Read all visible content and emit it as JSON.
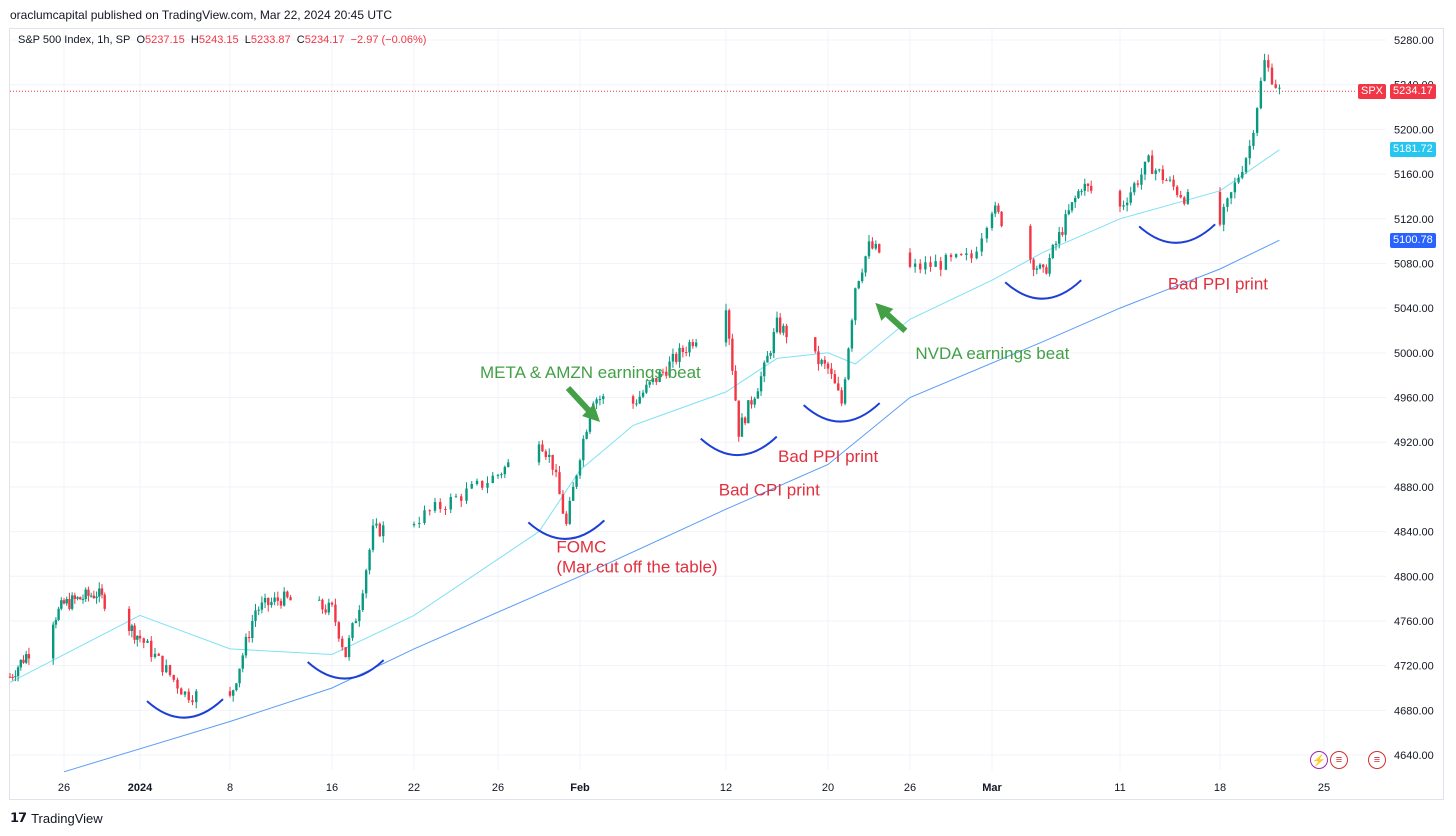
{
  "header": {
    "attribution": "oraclumcapital published on TradingView.com, Mar 22, 2024 20:45 UTC"
  },
  "legend": {
    "symbol": "S&P 500 Index, 1h, SP",
    "open_label": "O",
    "open": "5237.15",
    "high_label": "H",
    "high": "5243.15",
    "low_label": "L",
    "low": "5233.87",
    "close_label": "C",
    "close": "5234.17",
    "change": "−2.97 (−0.06%)"
  },
  "price_tags": {
    "spx_label": "SPX",
    "spx_value": "5234.17",
    "ma_fast_value": "5181.72",
    "ma_slow_value": "5100.78"
  },
  "footer": {
    "brand": "TradingView"
  },
  "colors": {
    "up": "#089981",
    "down": "#f23645",
    "ma_fast": "#7fe1f5",
    "ma_slow": "#5b9cf6",
    "annotation_red": "#e0303e",
    "annotation_green": "#43a047",
    "arc": "#1c3fd6"
  },
  "chart_data": {
    "type": "candlestick",
    "ylim": [
      4620,
      5290
    ],
    "y_ticks": [
      4640,
      4680,
      4720,
      4760,
      4800,
      4840,
      4880,
      4920,
      4960,
      5000,
      5040,
      5080,
      5120,
      5160,
      5200,
      5240,
      5280
    ],
    "y_tick_labels": [
      "4640.00",
      "4680.00",
      "4720.00",
      "4760.00",
      "4800.00",
      "4840.00",
      "4880.00",
      "4920.00",
      "4960.00",
      "5000.00",
      "5040.00",
      "5080.00",
      "5120.00",
      "5160.00",
      "5200.00",
      "5240.00",
      "5280.00"
    ],
    "x_ticks": [
      "26",
      "2024",
      "8",
      "16",
      "22",
      "26",
      "Feb",
      "12",
      "20",
      "26",
      "Mar",
      "11",
      "18",
      "25"
    ],
    "x_dates": [
      "2023-12-26",
      "2024-01-02",
      "2024-01-08",
      "2024-01-16",
      "2024-01-22",
      "2024-01-26",
      "2024-02-01",
      "2024-02-12",
      "2024-02-20",
      "2024-02-26",
      "2024-03-01",
      "2024-03-11",
      "2024-03-18",
      "2024-03-25"
    ],
    "last_price": 5234.17,
    "path_dates": [
      "2023-12-21",
      "2023-12-26",
      "2023-12-29",
      "2024-01-02",
      "2024-01-05",
      "2024-01-08",
      "2024-01-10",
      "2024-01-12",
      "2024-01-16",
      "2024-01-17",
      "2024-01-18",
      "2024-01-19",
      "2024-01-22",
      "2024-01-25",
      "2024-01-29",
      "2024-01-30",
      "2024-01-31",
      "2024-02-01",
      "2024-02-02",
      "2024-02-05",
      "2024-02-09",
      "2024-02-12",
      "2024-02-13",
      "2024-02-15",
      "2024-02-16",
      "2024-02-20",
      "2024-02-21",
      "2024-02-22",
      "2024-02-23",
      "2024-02-26",
      "2024-02-29",
      "2024-03-01",
      "2024-03-05",
      "2024-03-07",
      "2024-03-08",
      "2024-03-11",
      "2024-03-13",
      "2024-03-15",
      "2024-03-18",
      "2024-03-19",
      "2024-03-20",
      "2024-03-21",
      "2024-03-22"
    ],
    "path_close": [
      4710,
      4775,
      4785,
      4745,
      4695,
      4690,
      4770,
      4780,
      4770,
      4730,
      4775,
      4840,
      4850,
      4880,
      4925,
      4900,
      4845,
      4910,
      4960,
      4955,
      5005,
      5045,
      4930,
      4985,
      5025,
      4985,
      4955,
      5060,
      5095,
      5075,
      5085,
      5130,
      5070,
      5125,
      5150,
      5130,
      5170,
      5145,
      5115,
      5150,
      5185,
      5260,
      5234
    ],
    "ma_fast": {
      "dates": [
        "2023-12-21",
        "2024-01-02",
        "2024-01-08",
        "2024-01-16",
        "2024-01-22",
        "2024-01-29",
        "2024-02-01",
        "2024-02-05",
        "2024-02-12",
        "2024-02-16",
        "2024-02-20",
        "2024-02-22",
        "2024-02-26",
        "2024-03-01",
        "2024-03-05",
        "2024-03-11",
        "2024-03-18",
        "2024-03-22"
      ],
      "values": [
        4705,
        4765,
        4735,
        4730,
        4765,
        4840,
        4895,
        4935,
        4965,
        4995,
        5000,
        4990,
        5030,
        5065,
        5090,
        5120,
        5145,
        5181.72
      ]
    },
    "ma_slow": {
      "dates": [
        "2023-12-26",
        "2024-01-08",
        "2024-01-16",
        "2024-01-22",
        "2024-02-01",
        "2024-02-12",
        "2024-02-20",
        "2024-02-26",
        "2024-03-05",
        "2024-03-11",
        "2024-03-18",
        "2024-03-22"
      ],
      "values": [
        4625,
        4670,
        4700,
        4735,
        4800,
        4860,
        4900,
        4960,
        5010,
        5040,
        5075,
        5100.78
      ]
    },
    "annotations": [
      {
        "text": "META & AMZN earnings beat",
        "color": "green",
        "date": "2024-02-01",
        "price": 4990,
        "arrow": "down-right"
      },
      {
        "text": "NVDA earnings beat",
        "color": "green",
        "date": "2024-02-22",
        "price": 5000,
        "arrow": "up-left"
      },
      {
        "text": "FOMC",
        "text2": "(Mar cut off the table)",
        "color": "red",
        "date": "2024-01-31",
        "price": 4800
      },
      {
        "text": "Bad CPI print",
        "color": "red",
        "date": "2024-02-13",
        "price": 4890
      },
      {
        "text": "Bad PPI print",
        "color": "red",
        "date": "2024-02-16",
        "price": 4920
      },
      {
        "text": "Bad PPI print",
        "color": "red",
        "date": "2024-03-14",
        "price": 5070
      }
    ],
    "arcs": [
      {
        "date": "2024-01-05",
        "price": 4690
      },
      {
        "date": "2024-01-17",
        "price": 4725
      },
      {
        "date": "2024-01-31",
        "price": 4850
      },
      {
        "date": "2024-02-13",
        "price": 4925
      },
      {
        "date": "2024-02-21",
        "price": 4955
      },
      {
        "date": "2024-03-05",
        "price": 5065
      },
      {
        "date": "2024-03-15",
        "price": 5115
      }
    ]
  }
}
